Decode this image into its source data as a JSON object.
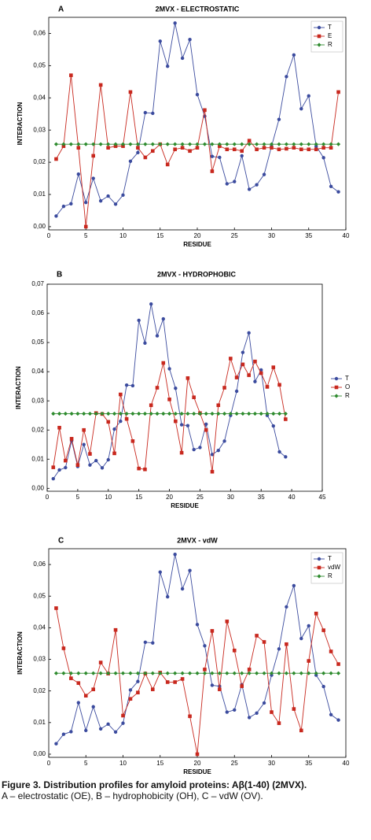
{
  "chart_data": [
    {
      "type": "line",
      "panel_label": "A",
      "title": "2MVX - ELECTROSTATIC",
      "x_label": "RESIDUE",
      "y_label": "INTERACTION",
      "x": [
        1,
        2,
        3,
        4,
        5,
        6,
        7,
        8,
        9,
        10,
        11,
        12,
        13,
        14,
        15,
        16,
        17,
        18,
        19,
        20,
        21,
        22,
        23,
        24,
        25,
        26,
        27,
        28,
        29,
        30,
        31,
        32,
        33,
        34,
        35,
        36,
        37,
        38,
        39
      ],
      "xlim": [
        0,
        40
      ],
      "xticks": [
        0,
        5,
        10,
        15,
        20,
        25,
        30,
        35,
        40
      ],
      "ylim": [
        -0.001,
        0.065
      ],
      "yticks": [
        {
          "value": 0,
          "label": "0,00"
        },
        {
          "value": 0.01,
          "label": "0,01"
        },
        {
          "value": 0.02,
          "label": "0,02"
        },
        {
          "value": 0.03,
          "label": "0,03"
        },
        {
          "value": 0.04,
          "label": "0,04"
        },
        {
          "value": 0.05,
          "label": "0,05"
        },
        {
          "value": 0.06,
          "label": "0,06"
        }
      ],
      "legend": "top right",
      "series": [
        {
          "name": "T",
          "color": "#3b4b9e",
          "marker": "circle",
          "values": [
            0.0033,
            0.0063,
            0.0071,
            0.0163,
            0.0075,
            0.015,
            0.008,
            0.0095,
            0.007,
            0.0098,
            0.0203,
            0.023,
            0.0354,
            0.0352,
            0.0576,
            0.0498,
            0.0632,
            0.0523,
            0.0581,
            0.041,
            0.0343,
            0.0218,
            0.0215,
            0.0133,
            0.014,
            0.022,
            0.0116,
            0.013,
            0.0162,
            0.025,
            0.0333,
            0.0466,
            0.0533,
            0.0366,
            0.0406,
            0.025,
            0.0214,
            0.0125,
            0.0108
          ]
        },
        {
          "name": "E",
          "color": "#c8281e",
          "marker": "square",
          "values": [
            0.021,
            0.025,
            0.047,
            0.0245,
            0.0,
            0.022,
            0.044,
            0.0245,
            0.025,
            0.025,
            0.0418,
            0.0245,
            0.0215,
            0.0235,
            0.0256,
            0.0193,
            0.024,
            0.0245,
            0.0235,
            0.0245,
            0.0362,
            0.0172,
            0.025,
            0.024,
            0.024,
            0.0235,
            0.0267,
            0.024,
            0.0245,
            0.0245,
            0.024,
            0.0242,
            0.0245,
            0.024,
            0.024,
            0.024,
            0.0245,
            0.0245,
            0.0418
          ]
        },
        {
          "name": "R",
          "color": "#2e8b2e",
          "marker": "diamond",
          "values": [
            0.0256,
            0.0256,
            0.0256,
            0.0256,
            0.0256,
            0.0256,
            0.0256,
            0.0256,
            0.0256,
            0.0256,
            0.0256,
            0.0256,
            0.0256,
            0.0256,
            0.0256,
            0.0256,
            0.0256,
            0.0256,
            0.0256,
            0.0256,
            0.0256,
            0.0256,
            0.0256,
            0.0256,
            0.0256,
            0.0256,
            0.0256,
            0.0256,
            0.0256,
            0.0256,
            0.0256,
            0.0256,
            0.0256,
            0.0256,
            0.0256,
            0.0256,
            0.0256,
            0.0256,
            0.0256
          ]
        }
      ]
    },
    {
      "type": "line",
      "panel_label": "B",
      "title": "2MVX - HYDROPHOBIC",
      "x_label": "RESIDUE",
      "y_label": "INTERACTION",
      "x": [
        1,
        2,
        3,
        4,
        5,
        6,
        7,
        8,
        9,
        10,
        11,
        12,
        13,
        14,
        15,
        16,
        17,
        18,
        19,
        20,
        21,
        22,
        23,
        24,
        25,
        26,
        27,
        28,
        29,
        30,
        31,
        32,
        33,
        34,
        35,
        36,
        37,
        38,
        39
      ],
      "xlim": [
        0,
        45
      ],
      "xticks": [
        0,
        5,
        10,
        15,
        20,
        25,
        30,
        35,
        40,
        45
      ],
      "ylim": [
        -0.001,
        0.07
      ],
      "yticks": [
        {
          "value": 0,
          "label": "0,00"
        },
        {
          "value": 0.01,
          "label": "0,01"
        },
        {
          "value": 0.02,
          "label": "0,02"
        },
        {
          "value": 0.03,
          "label": "0,03"
        },
        {
          "value": 0.04,
          "label": "0,04"
        },
        {
          "value": 0.05,
          "label": "0,05"
        },
        {
          "value": 0.06,
          "label": "0,06"
        },
        {
          "value": 0.07,
          "label": "0,07"
        }
      ],
      "legend": "right",
      "series": [
        {
          "name": "T",
          "color": "#3b4b9e",
          "marker": "circle",
          "values": [
            0.0033,
            0.0063,
            0.0071,
            0.0163,
            0.0075,
            0.015,
            0.008,
            0.0095,
            0.007,
            0.0098,
            0.0203,
            0.023,
            0.0354,
            0.0352,
            0.0576,
            0.0498,
            0.0632,
            0.0523,
            0.0581,
            0.041,
            0.0343,
            0.0218,
            0.0215,
            0.0133,
            0.014,
            0.022,
            0.0116,
            0.013,
            0.0162,
            0.025,
            0.0333,
            0.0466,
            0.0533,
            0.0366,
            0.0406,
            0.025,
            0.0214,
            0.0125,
            0.0108
          ]
        },
        {
          "name": "O",
          "color": "#c8281e",
          "marker": "square",
          "values": [
            0.0072,
            0.0208,
            0.0095,
            0.017,
            0.008,
            0.02,
            0.0118,
            0.0258,
            0.0255,
            0.0228,
            0.012,
            0.0322,
            0.0238,
            0.0162,
            0.0068,
            0.0065,
            0.0285,
            0.0345,
            0.043,
            0.0305,
            0.023,
            0.0122,
            0.0378,
            0.0312,
            0.0258,
            0.02,
            0.0057,
            0.0285,
            0.0345,
            0.0445,
            0.038,
            0.0425,
            0.0388,
            0.0435,
            0.0395,
            0.0348,
            0.0415,
            0.0355,
            0.0237
          ]
        },
        {
          "name": "R",
          "color": "#2e8b2e",
          "marker": "diamond",
          "values": [
            0.0256,
            0.0256,
            0.0256,
            0.0256,
            0.0256,
            0.0256,
            0.0256,
            0.0256,
            0.0256,
            0.0256,
            0.0256,
            0.0256,
            0.0256,
            0.0256,
            0.0256,
            0.0256,
            0.0256,
            0.0256,
            0.0256,
            0.0256,
            0.0256,
            0.0256,
            0.0256,
            0.0256,
            0.0256,
            0.0256,
            0.0256,
            0.0256,
            0.0256,
            0.0256,
            0.0256,
            0.0256,
            0.0256,
            0.0256,
            0.0256,
            0.0256,
            0.0256,
            0.0256,
            0.0256
          ]
        }
      ]
    },
    {
      "type": "line",
      "panel_label": "C",
      "title": "2MVX - vdW",
      "x_label": "RESIDUE",
      "y_label": "INTERACTION",
      "x": [
        1,
        2,
        3,
        4,
        5,
        6,
        7,
        8,
        9,
        10,
        11,
        12,
        13,
        14,
        15,
        16,
        17,
        18,
        19,
        20,
        21,
        22,
        23,
        24,
        25,
        26,
        27,
        28,
        29,
        30,
        31,
        32,
        33,
        34,
        35,
        36,
        37,
        38,
        39
      ],
      "xlim": [
        0,
        40
      ],
      "xticks": [
        0,
        5,
        10,
        15,
        20,
        25,
        30,
        35,
        40
      ],
      "ylim": [
        -0.001,
        0.065
      ],
      "yticks": [
        {
          "value": 0,
          "label": "0,00"
        },
        {
          "value": 0.01,
          "label": "0,01"
        },
        {
          "value": 0.02,
          "label": "0,02"
        },
        {
          "value": 0.03,
          "label": "0,03"
        },
        {
          "value": 0.04,
          "label": "0,04"
        },
        {
          "value": 0.05,
          "label": "0,05"
        },
        {
          "value": 0.06,
          "label": "0,06"
        }
      ],
      "legend": "top right",
      "series": [
        {
          "name": "T",
          "color": "#3b4b9e",
          "marker": "circle",
          "values": [
            0.0033,
            0.0063,
            0.0071,
            0.0163,
            0.0075,
            0.015,
            0.008,
            0.0095,
            0.007,
            0.0098,
            0.0203,
            0.023,
            0.0354,
            0.0352,
            0.0576,
            0.0498,
            0.0632,
            0.0523,
            0.0581,
            0.041,
            0.0343,
            0.0218,
            0.0215,
            0.0133,
            0.014,
            0.022,
            0.0116,
            0.013,
            0.0162,
            0.025,
            0.0333,
            0.0466,
            0.0533,
            0.0366,
            0.0406,
            0.025,
            0.0214,
            0.0125,
            0.0108
          ]
        },
        {
          "name": "vdW",
          "color": "#c8281e",
          "marker": "square",
          "values": [
            0.0462,
            0.0335,
            0.024,
            0.0225,
            0.0185,
            0.0205,
            0.029,
            0.0255,
            0.0393,
            0.0122,
            0.0175,
            0.0195,
            0.0255,
            0.0205,
            0.0258,
            0.0228,
            0.0228,
            0.0238,
            0.012,
            0.0,
            0.0268,
            0.039,
            0.0205,
            0.042,
            0.0328,
            0.0215,
            0.0268,
            0.0375,
            0.0355,
            0.0133,
            0.0098,
            0.0348,
            0.0143,
            0.0075,
            0.0295,
            0.0445,
            0.0392,
            0.0325,
            0.0285
          ]
        },
        {
          "name": "R",
          "color": "#2e8b2e",
          "marker": "diamond",
          "values": [
            0.0256,
            0.0256,
            0.0256,
            0.0256,
            0.0256,
            0.0256,
            0.0256,
            0.0256,
            0.0256,
            0.0256,
            0.0256,
            0.0256,
            0.0256,
            0.0256,
            0.0256,
            0.0256,
            0.0256,
            0.0256,
            0.0256,
            0.0256,
            0.0256,
            0.0256,
            0.0256,
            0.0256,
            0.0256,
            0.0256,
            0.0256,
            0.0256,
            0.0256,
            0.0256,
            0.0256,
            0.0256,
            0.0256,
            0.0256,
            0.0256,
            0.0256,
            0.0256,
            0.0256,
            0.0256
          ]
        }
      ]
    }
  ],
  "caption": {
    "title": "Figure 3. Distribution profiles for amyloid proteins: Aβ(1-40) (2MVX).",
    "text": "A – electrostatic (OE), B – hydrophobicity (OH), C – vdW (OV)."
  }
}
